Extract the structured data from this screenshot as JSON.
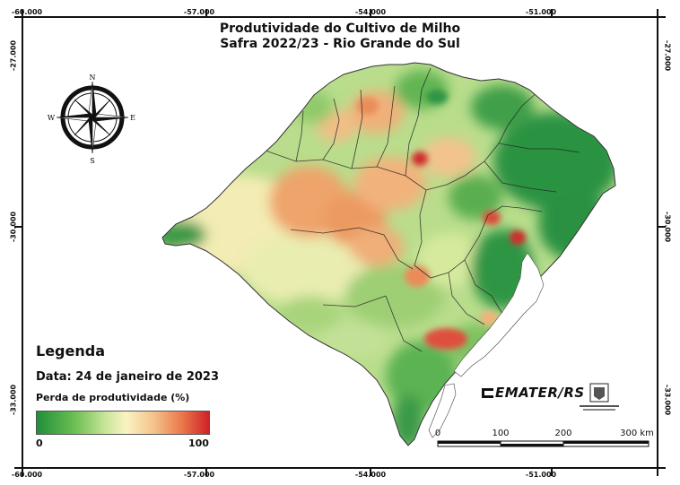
{
  "title": {
    "line1": "Produtividade do Cultivo de Milho",
    "line2": "Safra 2022/23 - Rio Grande do Sul"
  },
  "grid_labels": {
    "longitudes": [
      "-60.000",
      "-57.000",
      "-54.000",
      "-51.000"
    ],
    "latitudes": [
      "-27.000",
      "-30.000",
      "-33.000"
    ]
  },
  "compass": {
    "n": "N",
    "s": "S",
    "e": "E",
    "w": "W"
  },
  "legend": {
    "title": "Legenda",
    "date": "Data: 24 de janeiro de 2023",
    "subtitle": "Perda de produtividade (%)",
    "min": "0",
    "max": "100",
    "colors": [
      "#1f8f3a",
      "#6cbf52",
      "#c9e59a",
      "#fbf3c3",
      "#f4c28b",
      "#eb7a4b",
      "#cf2127"
    ]
  },
  "scale_bar": {
    "labels": [
      "0",
      "100",
      "200",
      "300 km"
    ]
  },
  "logos": {
    "emater": "EMATER/RS"
  }
}
